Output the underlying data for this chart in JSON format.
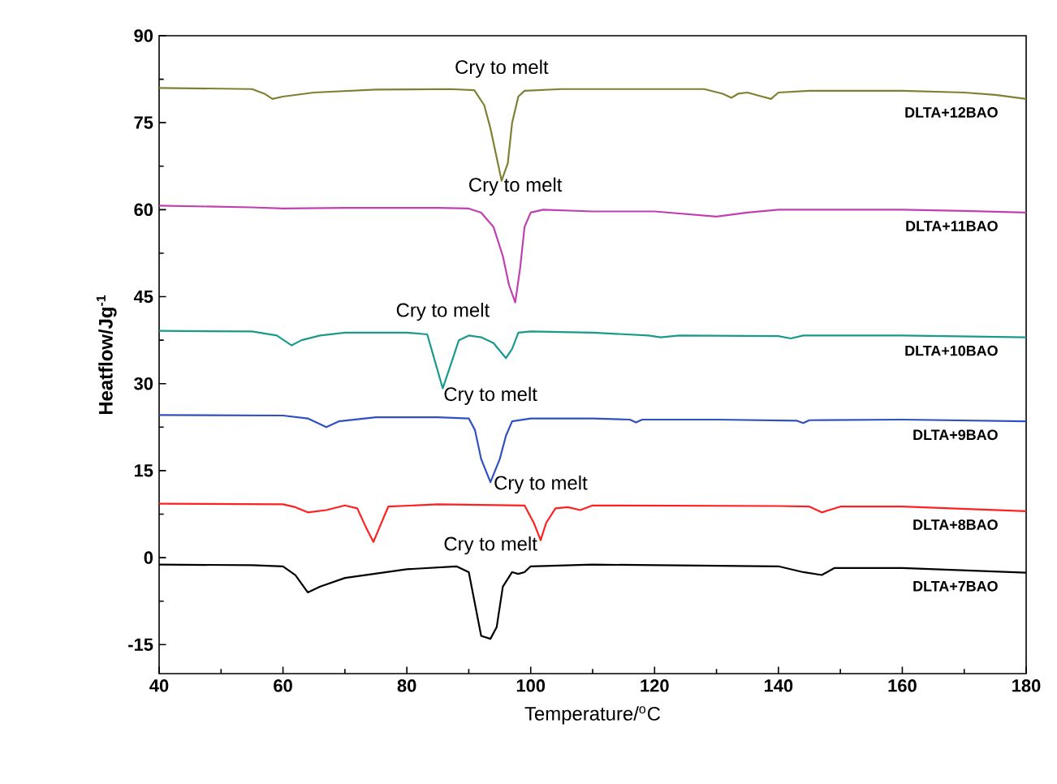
{
  "chart_data": {
    "type": "line",
    "xlabel": "Temperature/$^{o}$C",
    "ylabel": "Heatflow/Jg$^{-1}$",
    "xlim": [
      40,
      180
    ],
    "ylim": [
      -20,
      90
    ],
    "xticks": [
      40,
      60,
      80,
      100,
      120,
      140,
      160,
      180
    ],
    "yticks": [
      -15,
      0,
      15,
      30,
      45,
      60,
      75,
      90
    ],
    "grid": false,
    "legend": false,
    "marker": "none",
    "line_style": "solid",
    "series": [
      {
        "name": "DLTA+12BAO",
        "color": "#808032",
        "x": [
          40,
          55,
          57,
          58.3,
          60,
          65,
          75,
          87,
          90.9,
          92.5,
          93.5,
          94.5,
          95.3,
          96.3,
          97,
          98,
          99,
          105,
          128,
          131,
          132.4,
          133.5,
          135,
          137,
          138.8,
          140,
          145,
          160,
          170,
          175,
          180
        ],
        "values": [
          81,
          80.8,
          80,
          79.1,
          79.5,
          80.2,
          80.7,
          80.8,
          80.6,
          78,
          74,
          69,
          65,
          68,
          75,
          79.5,
          80.5,
          80.8,
          80.8,
          80,
          79.3,
          80,
          80.2,
          79.6,
          79.1,
          80.2,
          80.5,
          80.5,
          80.2,
          79.8,
          79.1
        ]
      },
      {
        "name": "DLTA+11BAO",
        "color": "#c040b0",
        "x": [
          40,
          55,
          60,
          70,
          85,
          90,
          92,
          94,
          95.5,
          96.5,
          97.5,
          98.3,
          99,
          100,
          102,
          110,
          120,
          130,
          135,
          140,
          150,
          160,
          170,
          180
        ],
        "values": [
          60.7,
          60.4,
          60.2,
          60.3,
          60.3,
          60.2,
          59.5,
          57,
          52,
          47,
          44,
          50,
          57,
          59.5,
          60,
          59.7,
          59.7,
          58.8,
          59.5,
          60,
          60,
          60,
          59.8,
          59.5
        ]
      },
      {
        "name": "DLTA+10BAO",
        "color": "#1a9a8c",
        "x": [
          40,
          55,
          59,
          61.4,
          63,
          66,
          70,
          80,
          83.3,
          84.5,
          85.8,
          87,
          88.4,
          90,
          92,
          94,
          96,
          97,
          98,
          100,
          110,
          119,
          121,
          124,
          140,
          142,
          144,
          160,
          180
        ],
        "values": [
          39.1,
          39,
          38.3,
          36.6,
          37.5,
          38.3,
          38.8,
          38.8,
          38.5,
          34,
          29.2,
          33,
          37.5,
          38.3,
          38,
          37,
          34.4,
          36,
          38.8,
          39,
          38.8,
          38.3,
          38,
          38.3,
          38.2,
          37.8,
          38.3,
          38.3,
          38
        ]
      },
      {
        "name": "DLTA+9BAO",
        "color": "#3050c0",
        "x": [
          40,
          60,
          64,
          67,
          69,
          75,
          85,
          90,
          91,
          92,
          93.5,
          95,
          96,
          97,
          100,
          110,
          116,
          117,
          118,
          130,
          143,
          144,
          145,
          160,
          180
        ],
        "values": [
          24.6,
          24.5,
          24,
          22.5,
          23.5,
          24.2,
          24.2,
          24,
          22,
          17,
          13,
          17,
          21,
          23.5,
          24,
          24,
          23.8,
          23.3,
          23.8,
          23.8,
          23.6,
          23.2,
          23.7,
          23.8,
          23.5
        ]
      },
      {
        "name": "DLTA+8BAO",
        "color": "#ff2020",
        "x": [
          40,
          60,
          62,
          64,
          67,
          70,
          72,
          73.5,
          74.6,
          75.5,
          77,
          85,
          99,
          100.5,
          101.6,
          102.5,
          104,
          106,
          108,
          110,
          140,
          145,
          147,
          150,
          160,
          180
        ],
        "values": [
          9.3,
          9.2,
          8.7,
          7.8,
          8.2,
          9,
          8.5,
          5,
          2.7,
          5,
          8.8,
          9.2,
          9,
          6,
          3,
          6,
          8.5,
          8.7,
          8.2,
          9,
          8.9,
          8.8,
          7.8,
          8.8,
          8.8,
          8
        ]
      },
      {
        "name": "DLTA+7BAO",
        "color": "#000000",
        "x": [
          40,
          55,
          60,
          62,
          64,
          66,
          70,
          80,
          88,
          90,
          91,
          92,
          93.5,
          94.5,
          95.5,
          97,
          98,
          99,
          100,
          110,
          140,
          144,
          147,
          149,
          160,
          180
        ],
        "values": [
          -1.2,
          -1.3,
          -1.5,
          -3,
          -6,
          -5,
          -3.5,
          -2,
          -1.5,
          -2.5,
          -8,
          -13.5,
          -14,
          -12,
          -5,
          -2.5,
          -2.8,
          -2.5,
          -1.5,
          -1.2,
          -1.5,
          -2.5,
          -3,
          -1.8,
          -1.8,
          -2.6
        ]
      }
    ],
    "annotations": [
      "Cry to melt",
      "Cry to melt",
      "Cry to melt",
      "Cry to melt",
      "Cry to melt",
      "Cry to melt"
    ]
  }
}
